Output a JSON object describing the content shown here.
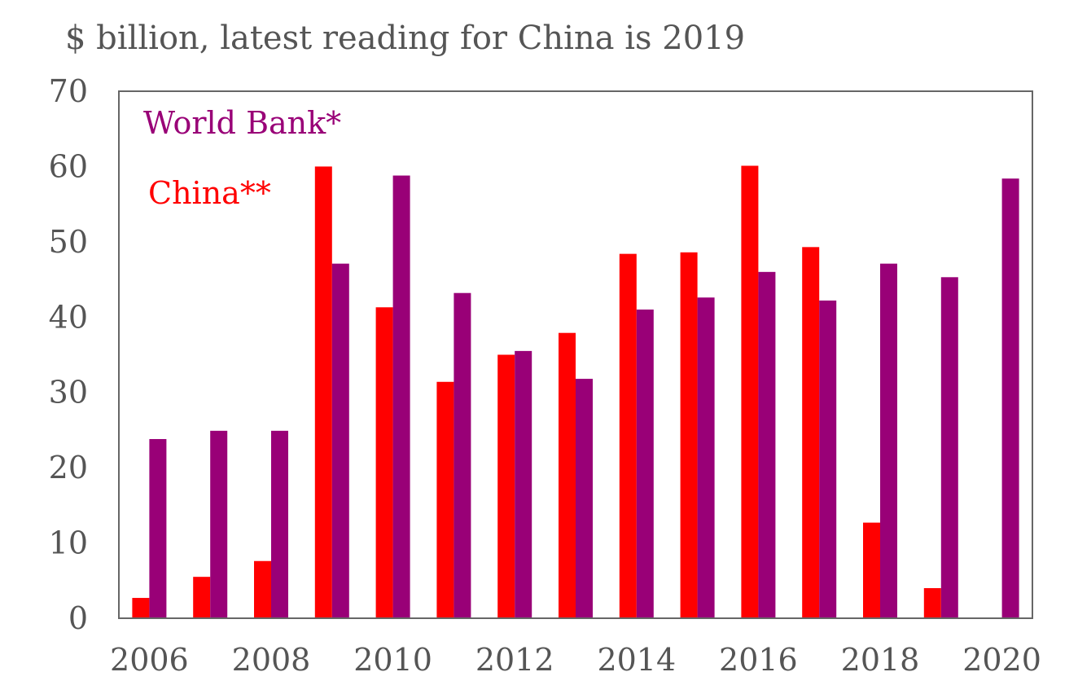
{
  "chart_data": {
    "type": "bar",
    "title": "$ billion, latest reading for China is 2019",
    "xlabel": "",
    "ylabel": "",
    "x": [
      2006,
      2007,
      2008,
      2009,
      2010,
      2011,
      2012,
      2013,
      2014,
      2015,
      2016,
      2017,
      2018,
      2019,
      2020
    ],
    "x_tick_labels": [
      "2006",
      "2008",
      "2010",
      "2012",
      "2014",
      "2016",
      "2018",
      "2020"
    ],
    "y_tick_labels": [
      "0",
      "10",
      "20",
      "30",
      "40",
      "50",
      "60",
      "70"
    ],
    "ylim": [
      0,
      70
    ],
    "grid": false,
    "legend_position": "top-left",
    "series": [
      {
        "name": "China**",
        "color": "#ff0000",
        "values": [
          2.7,
          5.5,
          7.6,
          60.0,
          41.3,
          31.4,
          35.0,
          37.9,
          48.4,
          48.6,
          60.1,
          49.3,
          12.7,
          4.0,
          null
        ]
      },
      {
        "name": "World Bank*",
        "color": "#990077",
        "values": [
          23.8,
          24.9,
          24.9,
          47.1,
          58.8,
          43.2,
          35.5,
          31.8,
          41.0,
          42.6,
          46.0,
          42.2,
          47.1,
          45.3,
          58.4
        ]
      }
    ],
    "legend_order": [
      "World Bank*",
      "China**"
    ]
  }
}
